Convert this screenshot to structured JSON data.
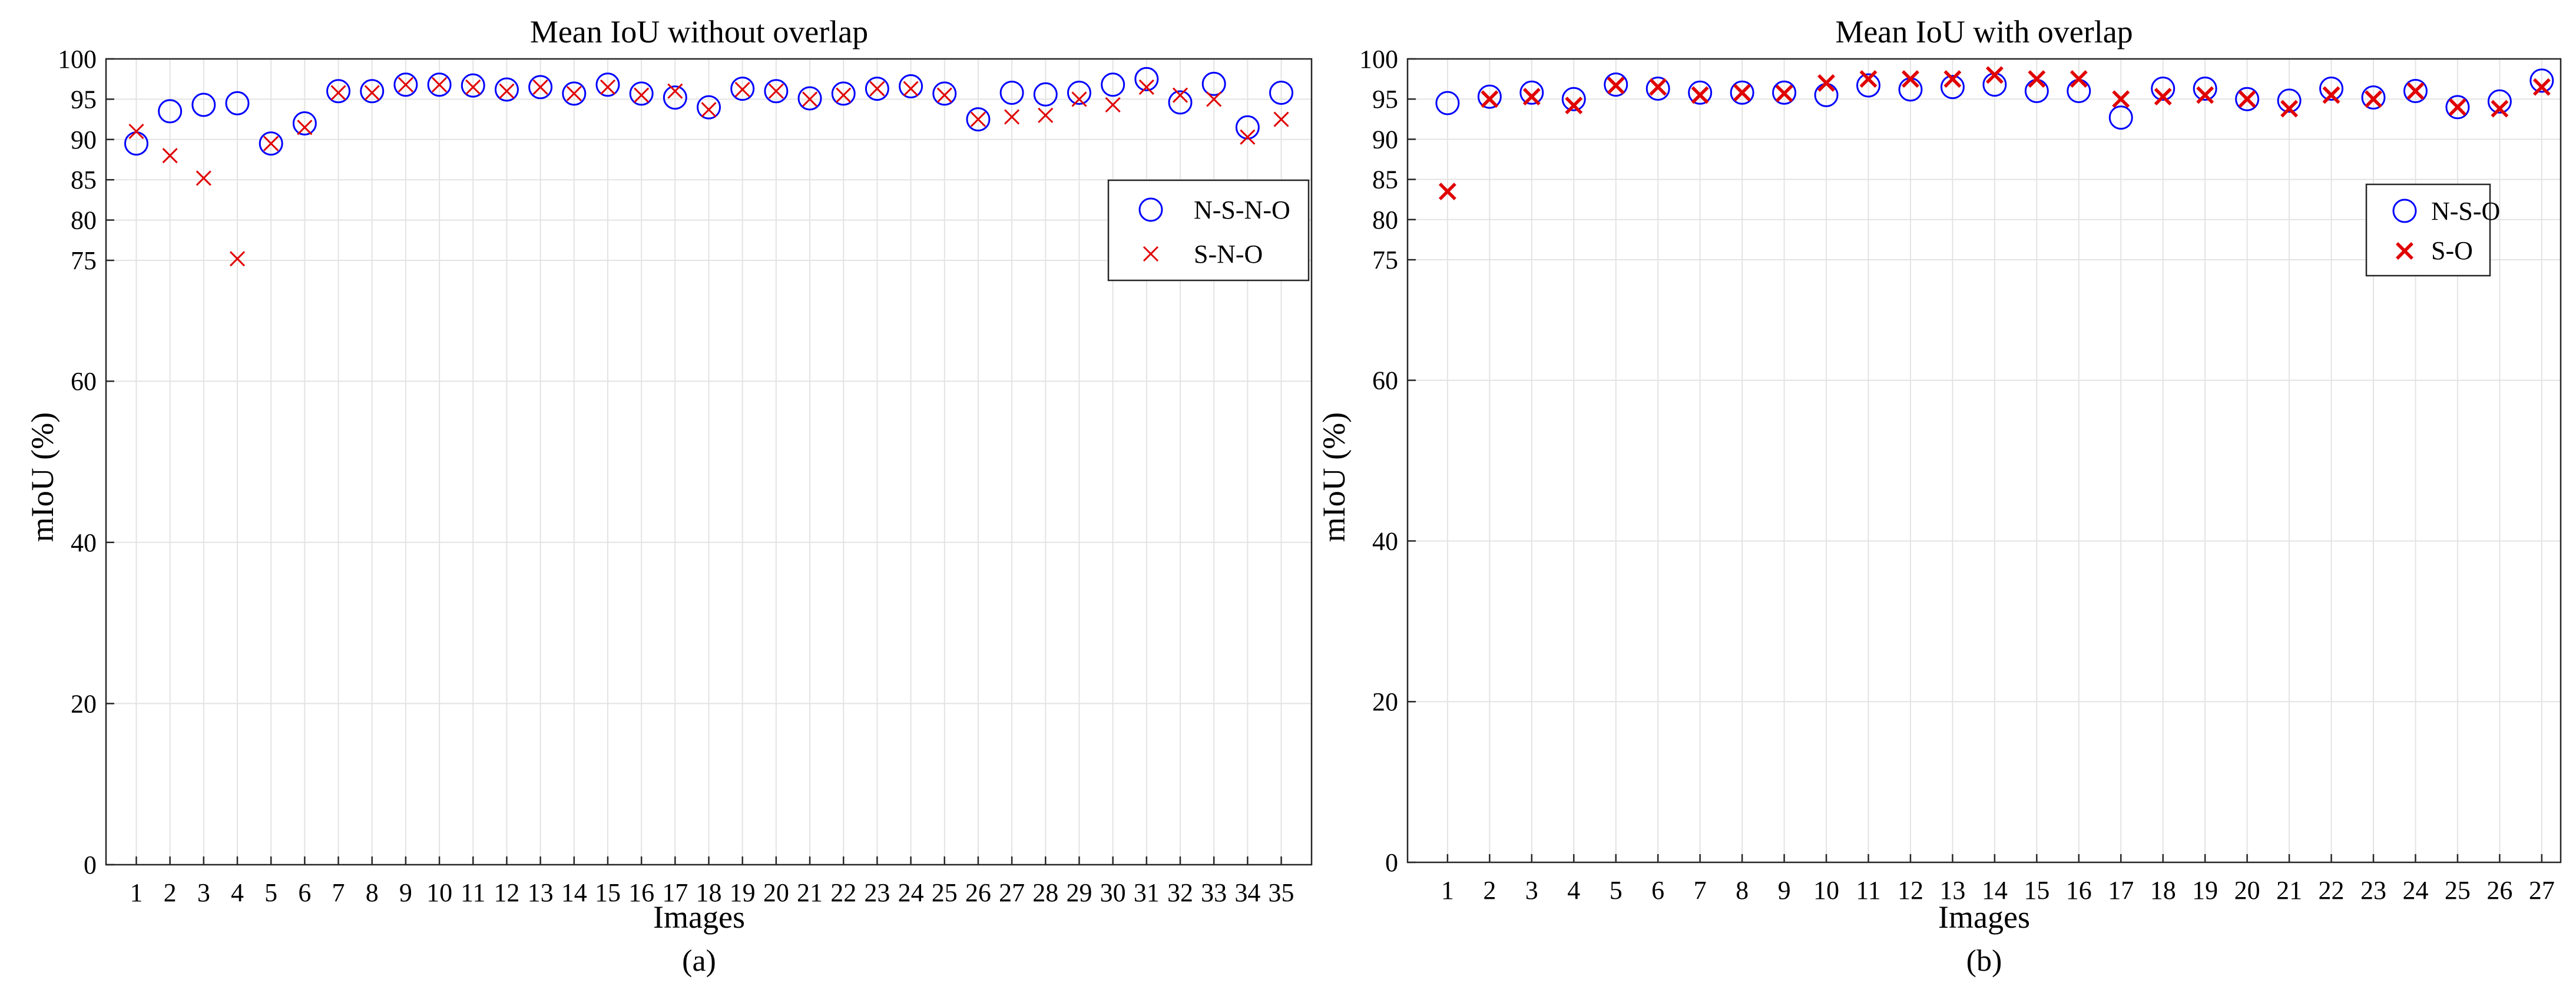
{
  "figure_labels": [
    "(a)",
    "(b)"
  ],
  "colors": {
    "circle_series": "#0000ff",
    "cross_series": "#e00000",
    "grid": "#e3e3e3",
    "axis": "#262626"
  },
  "chart_data": [
    {
      "type": "scatter",
      "title": "Mean IoU without overlap",
      "xlabel": "Images",
      "ylabel": "mIoU (%)",
      "ylim": [
        0,
        100
      ],
      "yticks": [
        0,
        20,
        40,
        60,
        75,
        80,
        85,
        90,
        95,
        100
      ],
      "legend_position": "right",
      "grid": true,
      "x": [
        1,
        2,
        3,
        4,
        5,
        6,
        7,
        8,
        9,
        10,
        11,
        12,
        13,
        14,
        15,
        16,
        17,
        18,
        19,
        20,
        21,
        22,
        23,
        24,
        25,
        26,
        27,
        28,
        29,
        30,
        31,
        32,
        33,
        34,
        35
      ],
      "series": [
        {
          "name": "N-S-N-O",
          "marker": "circle",
          "values": [
            89.5,
            93.5,
            94.3,
            94.5,
            89.5,
            92,
            96,
            96,
            96.8,
            96.8,
            96.7,
            96.2,
            96.5,
            95.7,
            96.8,
            95.7,
            95.2,
            94,
            96.3,
            96,
            95.1,
            95.7,
            96.3,
            96.6,
            95.7,
            92.5,
            95.8,
            95.6,
            95.8,
            96.8,
            97.5,
            94.6,
            96.9,
            91.5,
            95.8
          ]
        },
        {
          "name": "S-N-O",
          "marker": "cross",
          "values": [
            91,
            88,
            85.2,
            75.2,
            89.5,
            91.5,
            95.8,
            95.8,
            96.8,
            96.8,
            96.5,
            96,
            96.5,
            95.7,
            96.5,
            95.5,
            96,
            93.7,
            96.2,
            96,
            95,
            95.5,
            96.3,
            96.3,
            95.5,
            92.5,
            92.8,
            93,
            95,
            94.3,
            96.5,
            95.5,
            95,
            90.3,
            92.5
          ]
        }
      ]
    },
    {
      "type": "scatter",
      "title": "Mean IoU with overlap",
      "xlabel": "Images",
      "ylabel": "mIoU (%)",
      "ylim": [
        0,
        100
      ],
      "yticks": [
        0,
        20,
        40,
        60,
        75,
        80,
        85,
        90,
        95,
        100
      ],
      "legend_position": "right",
      "grid": true,
      "x": [
        1,
        2,
        3,
        4,
        5,
        6,
        7,
        8,
        9,
        10,
        11,
        12,
        13,
        14,
        15,
        16,
        17,
        18,
        19,
        20,
        21,
        22,
        23,
        24,
        25,
        26,
        27
      ],
      "series": [
        {
          "name": "N-S-O",
          "marker": "circle",
          "values": [
            94.5,
            95.3,
            95.8,
            95,
            96.8,
            96.3,
            95.8,
            95.8,
            95.8,
            95.5,
            96.7,
            96.2,
            96.5,
            96.8,
            96,
            96,
            92.7,
            96.3,
            96.3,
            95,
            94.8,
            96.3,
            95.2,
            96,
            94,
            94.7,
            97.3
          ]
        },
        {
          "name": "S-O",
          "marker": "cross",
          "values": [
            83.5,
            95,
            95.3,
            94.2,
            96.7,
            96.5,
            95.5,
            95.8,
            95.7,
            97,
            97.5,
            97.5,
            97.5,
            98,
            97.5,
            97.5,
            95,
            95.3,
            95.5,
            95,
            93.8,
            95.5,
            95,
            96,
            94,
            93.8,
            96.5
          ]
        }
      ]
    }
  ]
}
